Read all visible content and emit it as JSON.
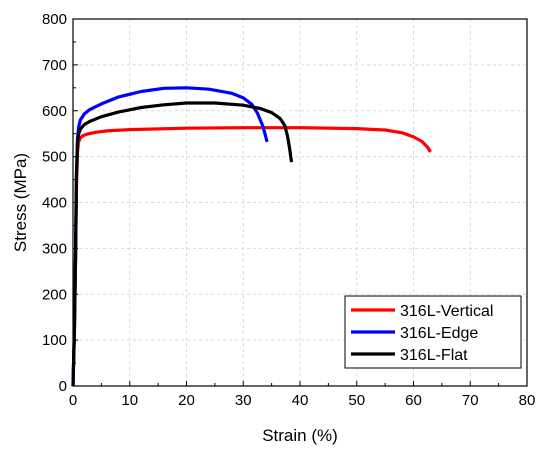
{
  "chart_data": {
    "type": "line",
    "title": "",
    "xlabel": "Strain (%)",
    "ylabel": "Stress (MPa)",
    "xlim": [
      0,
      80
    ],
    "ylim": [
      0,
      800
    ],
    "xticks": [
      0,
      10,
      20,
      30,
      40,
      50,
      60,
      70,
      80
    ],
    "yticks": [
      0,
      100,
      200,
      300,
      400,
      500,
      600,
      700,
      800
    ],
    "grid": true,
    "legend_position": "bottom-right",
    "series": [
      {
        "name": "316L-Vertical",
        "color": "#ff0000",
        "x": [
          0,
          0.25,
          0.45,
          0.6,
          0.8,
          1.0,
          1.3,
          1.8,
          2.5,
          4,
          6,
          10,
          20,
          30,
          40,
          50,
          55,
          58,
          60,
          61.5,
          62.5,
          63
        ],
        "y": [
          0,
          120,
          280,
          430,
          510,
          533,
          541,
          546,
          549,
          553,
          556,
          559,
          562,
          563,
          563,
          561,
          558,
          552,
          543,
          533,
          520,
          510
        ]
      },
      {
        "name": "316L-Edge",
        "color": "#0000ff",
        "x": [
          0,
          0.25,
          0.45,
          0.6,
          0.8,
          1.0,
          1.3,
          2,
          3,
          5,
          8,
          12,
          16,
          20,
          24,
          28,
          30,
          31.5,
          32.5,
          33.5,
          34.2
        ],
        "y": [
          0,
          120,
          300,
          460,
          540,
          565,
          580,
          593,
          603,
          615,
          630,
          642,
          649,
          650,
          647,
          638,
          628,
          614,
          595,
          565,
          532
        ]
      },
      {
        "name": "316L-Flat",
        "color": "#000000",
        "x": [
          0,
          0.25,
          0.45,
          0.6,
          0.8,
          1.0,
          1.3,
          2,
          3,
          5,
          8,
          12,
          16,
          20,
          25,
          30,
          33,
          35,
          36.5,
          37.3,
          37.8,
          38.2,
          38.5
        ],
        "y": [
          0,
          120,
          290,
          450,
          530,
          550,
          560,
          570,
          577,
          587,
          597,
          607,
          613,
          617,
          617,
          612,
          605,
          596,
          583,
          568,
          545,
          515,
          488
        ]
      }
    ]
  }
}
